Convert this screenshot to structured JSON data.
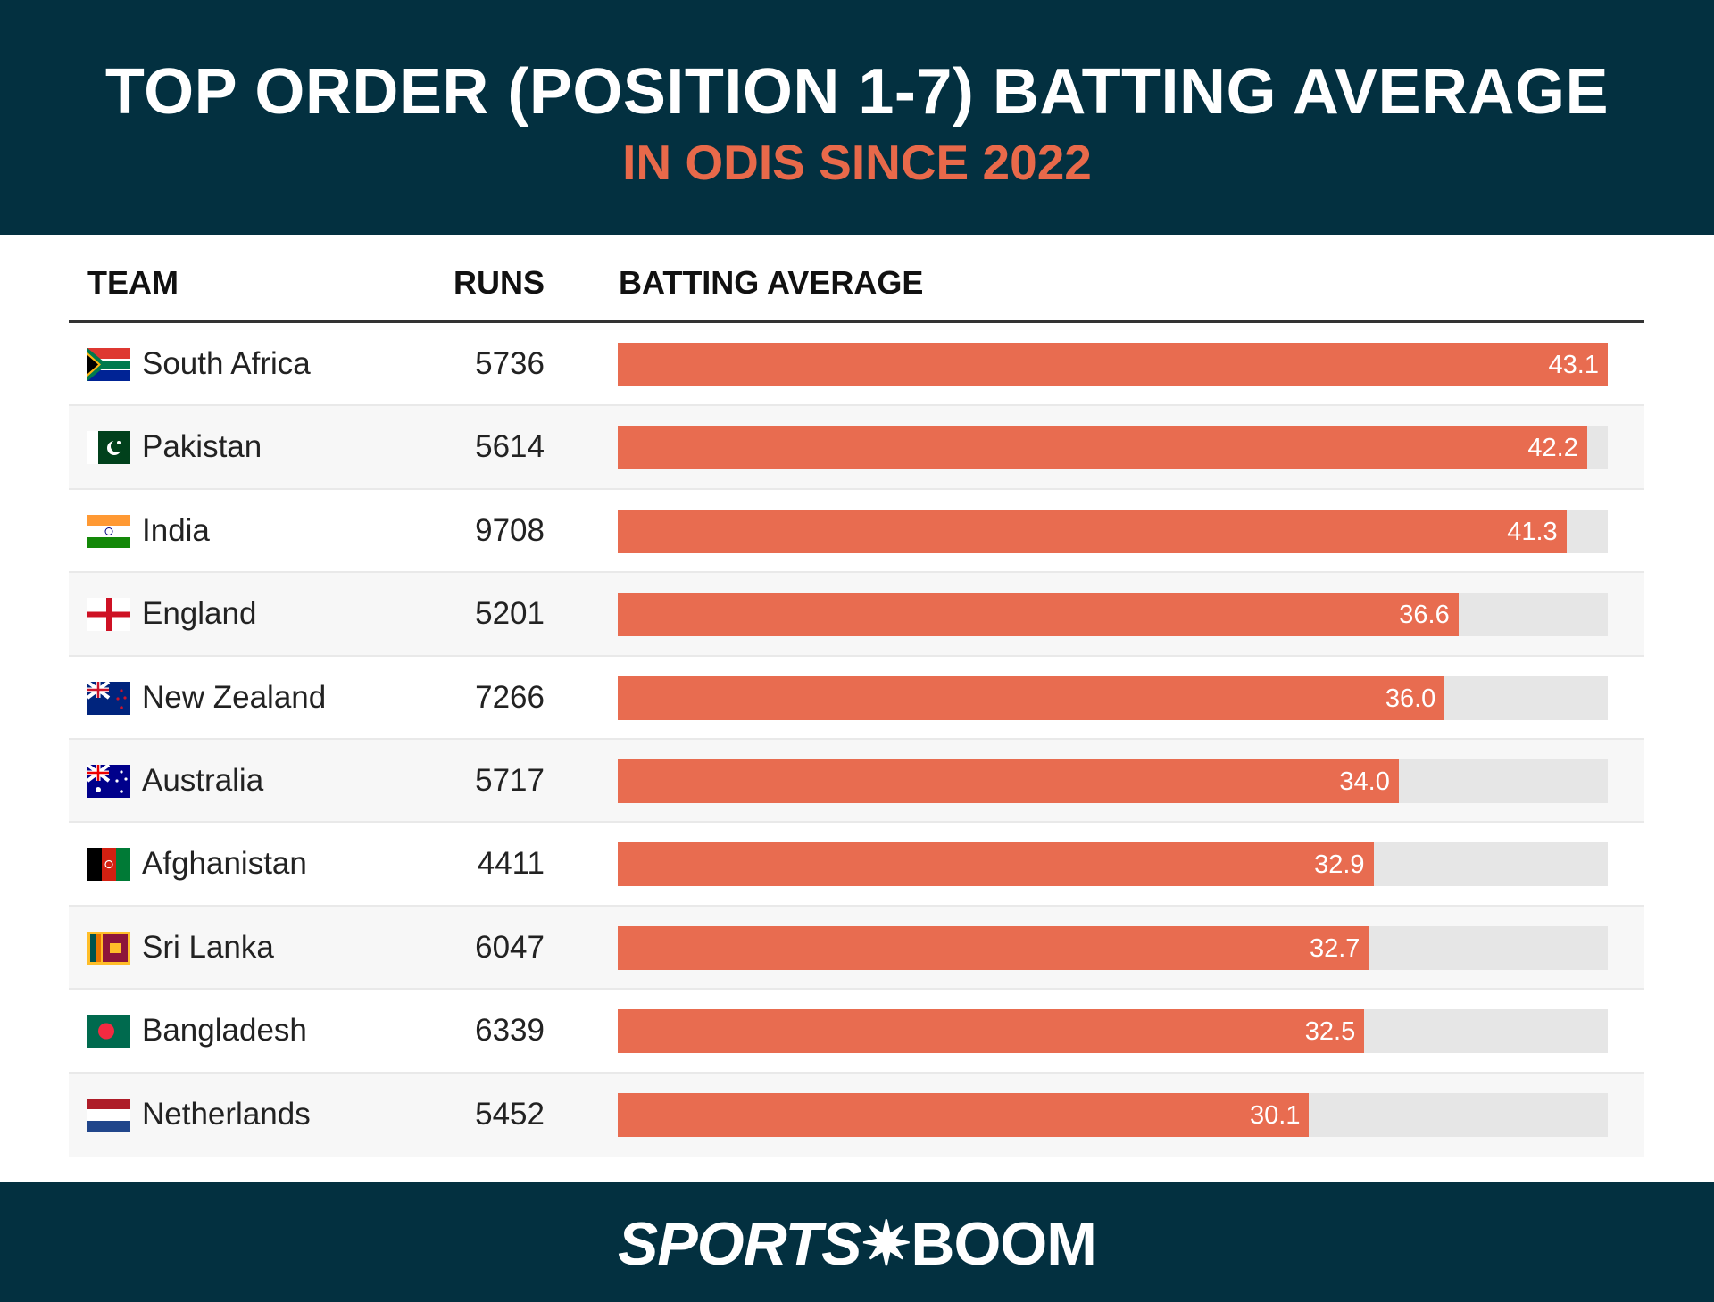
{
  "header": {
    "title": "TOP ORDER (POSITION 1-7) BATTING AVERAGE",
    "subtitle": "IN ODIS SINCE 2022"
  },
  "colors": {
    "header_bg": "#033040",
    "accent": "#e86c50",
    "subtitle": "#e8694a",
    "track": "#e6e6e6"
  },
  "footer": {
    "logo": "SPORTSBOOM"
  },
  "chart_data": {
    "type": "bar",
    "orientation": "horizontal",
    "columns": [
      "TEAM",
      "RUNS",
      "BATTING AVERAGE"
    ],
    "categories": [
      "South Africa",
      "Pakistan",
      "India",
      "England",
      "New Zealand",
      "Australia",
      "Afghanistan",
      "Sri Lanka",
      "Bangladesh",
      "Netherlands"
    ],
    "runs": [
      "5736",
      "5614",
      "9708",
      "5201",
      "7266",
      "5717",
      "4411",
      "6047",
      "6339",
      "5452"
    ],
    "values": [
      43.1,
      42.2,
      41.3,
      36.6,
      36.0,
      34.0,
      32.9,
      32.7,
      32.5,
      30.1
    ],
    "labels": [
      "43.1",
      "42.2",
      "41.3",
      "36.6",
      "36.0",
      "34.0",
      "32.9",
      "32.7",
      "32.5",
      "30.1"
    ],
    "flags": [
      "south-africa-flag",
      "pakistan-flag",
      "india-flag",
      "england-flag",
      "new-zealand-flag",
      "australia-flag",
      "afghanistan-flag",
      "sri-lanka-flag",
      "bangladesh-flag",
      "netherlands-flag"
    ],
    "xlim": [
      0,
      43.1
    ]
  }
}
